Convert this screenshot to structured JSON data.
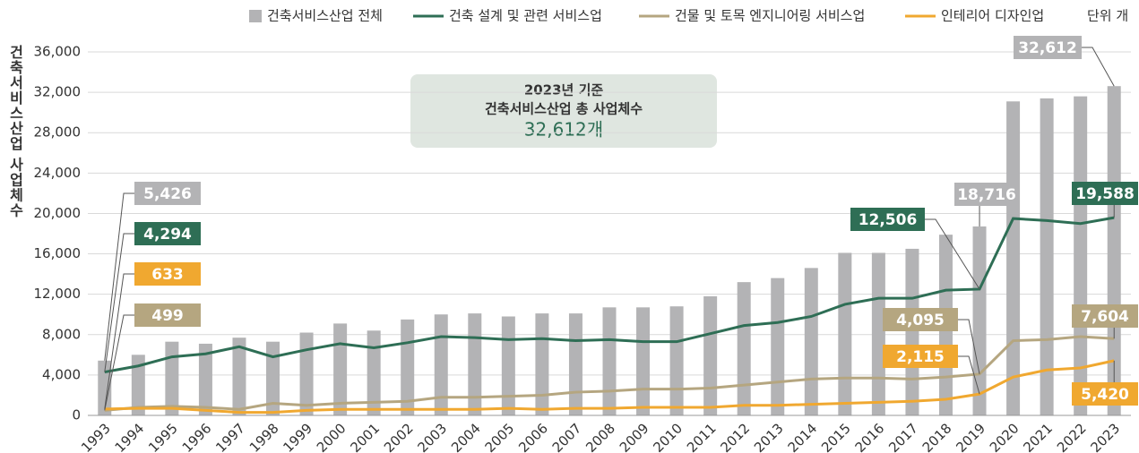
{
  "chart_data": {
    "type": "bar-line",
    "unit": "단위  개",
    "ylabel": "건축서비스산업 사업체수",
    "annotation": {
      "lines": [
        "2023년 기준",
        "건축서비스산업 총 사업체수"
      ],
      "highlight": "32,612개"
    },
    "categories": [
      "1993",
      "1994",
      "1995",
      "1996",
      "1997",
      "1998",
      "1999",
      "2000",
      "2001",
      "2002",
      "2003",
      "2004",
      "2005",
      "2006",
      "2007",
      "2008",
      "2009",
      "2010",
      "2011",
      "2012",
      "2013",
      "2014",
      "2015",
      "2016",
      "2017",
      "2018",
      "2019",
      "2020",
      "2021",
      "2022",
      "2023"
    ],
    "series": [
      {
        "name": "건축서비스산업 전체",
        "type": "bar",
        "color": "#b3b3b5",
        "values": [
          5426,
          6000,
          7300,
          7100,
          7700,
          7300,
          8200,
          9100,
          8400,
          9500,
          10000,
          10100,
          9800,
          10100,
          10100,
          10700,
          10700,
          10800,
          11800,
          13200,
          13600,
          14600,
          16100,
          16100,
          16500,
          17900,
          18716,
          31100,
          31400,
          31600,
          32612
        ],
        "value_labels": [
          "5,426",
          null,
          null,
          null,
          null,
          null,
          null,
          null,
          null,
          null,
          null,
          null,
          null,
          null,
          null,
          null,
          null,
          null,
          null,
          null,
          null,
          null,
          null,
          null,
          null,
          null,
          "18,716",
          null,
          null,
          null,
          "32,612"
        ]
      },
      {
        "name": "건축 설계 및 관련 서비스업",
        "type": "line",
        "color": "#2e6e55",
        "values": [
          4294,
          4900,
          5800,
          6100,
          6800,
          5800,
          6500,
          7100,
          6700,
          7200,
          7800,
          7700,
          7500,
          7600,
          7400,
          7500,
          7300,
          7300,
          8100,
          8900,
          9200,
          9800,
          11000,
          11600,
          11600,
          12400,
          12506,
          19500,
          19300,
          19000,
          19588
        ],
        "value_labels": [
          "4,294",
          null,
          null,
          null,
          null,
          null,
          null,
          null,
          null,
          null,
          null,
          null,
          null,
          null,
          null,
          null,
          null,
          null,
          null,
          null,
          null,
          null,
          null,
          null,
          null,
          null,
          "12,506",
          null,
          null,
          null,
          "19,588"
        ]
      },
      {
        "name": "건물 및 토목 엔지니어링 서비스업",
        "type": "line",
        "color": "#b5a680",
        "values": [
          499,
          800,
          900,
          800,
          600,
          1200,
          1000,
          1200,
          1300,
          1400,
          1800,
          1800,
          1900,
          2000,
          2300,
          2400,
          2600,
          2600,
          2700,
          3000,
          3300,
          3600,
          3700,
          3700,
          3600,
          3800,
          4095,
          7400,
          7500,
          7800,
          7604
        ],
        "value_labels": [
          "499",
          null,
          null,
          null,
          null,
          null,
          null,
          null,
          null,
          null,
          null,
          null,
          null,
          null,
          null,
          null,
          null,
          null,
          null,
          null,
          null,
          null,
          null,
          null,
          null,
          null,
          "4,095",
          null,
          null,
          null,
          "7,604"
        ]
      },
      {
        "name": "인테리어 디자인업",
        "type": "line",
        "color": "#f0a830",
        "values": [
          633,
          700,
          700,
          500,
          300,
          300,
          500,
          600,
          600,
          600,
          600,
          600,
          700,
          600,
          700,
          700,
          800,
          800,
          800,
          1000,
          1000,
          1100,
          1200,
          1300,
          1400,
          1600,
          2115,
          3800,
          4500,
          4700,
          5420
        ],
        "value_labels": [
          "633",
          null,
          null,
          null,
          null,
          null,
          null,
          null,
          null,
          null,
          null,
          null,
          null,
          null,
          null,
          null,
          null,
          null,
          null,
          null,
          null,
          null,
          null,
          null,
          null,
          null,
          "2,115",
          null,
          null,
          null,
          "5,420"
        ]
      }
    ],
    "ylim": [
      0,
      36000
    ],
    "yticks": [
      0,
      {
        "value": 4000,
        "label": "4,000"
      },
      {
        "value": 8000,
        "label": "8,000"
      },
      {
        "value": 12000,
        "label": "12,000"
      },
      {
        "value": 16000,
        "label": "16,000"
      },
      {
        "value": 20000,
        "label": "20,000"
      },
      {
        "value": 24000,
        "label": "24,000"
      },
      {
        "value": 28000,
        "label": "28,000"
      },
      {
        "value": 32000,
        "label": "32,000"
      },
      {
        "value": 36000,
        "label": "36,000"
      }
    ],
    "grid": true,
    "legend": "top"
  }
}
